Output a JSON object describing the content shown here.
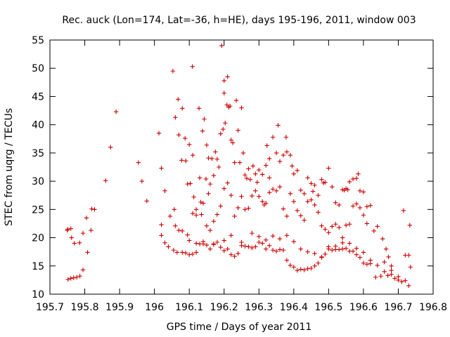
{
  "chart_data": {
    "type": "scatter",
    "title": "Rec. auck (Lon=174, Lat=-36, h=HE), days 195-196, 2011, window 003",
    "xlabel": "GPS time / Days of year 2011",
    "ylabel": "STEC from uqrg / TECUs",
    "xlim": [
      195.7,
      196.8
    ],
    "ylim": [
      10,
      55
    ],
    "xticks": [
      "195.7",
      "195.8",
      "195.9",
      "196",
      "196.1",
      "196.2",
      "196.3",
      "196.4",
      "196.5",
      "196.6",
      "196.7",
      "196.8"
    ],
    "yticks": [
      "10",
      "15",
      "20",
      "25",
      "30",
      "35",
      "40",
      "45",
      "50",
      "55"
    ],
    "grid": false,
    "marker": "+",
    "color": "#cc0000",
    "series": [
      {
        "points": [
          [
            195.75,
            21.3
          ],
          [
            195.751,
            21.5
          ],
          [
            195.76,
            21.6
          ],
          [
            195.762,
            20.0
          ],
          [
            195.77,
            19.0
          ],
          [
            195.785,
            19.1
          ],
          [
            195.795,
            20.8
          ],
          [
            195.805,
            23.5
          ],
          [
            195.808,
            17.4
          ],
          [
            195.818,
            21.3
          ],
          [
            195.82,
            25.1
          ],
          [
            195.828,
            25.0
          ],
          [
            195.86,
            30.1
          ],
          [
            195.874,
            36.0
          ],
          [
            195.89,
            42.3
          ],
          [
            195.752,
            12.6
          ],
          [
            195.76,
            12.8
          ],
          [
            195.768,
            12.9
          ],
          [
            195.777,
            13.0
          ],
          [
            195.786,
            13.2
          ],
          [
            195.795,
            14.3
          ],
          [
            195.954,
            33.3
          ],
          [
            195.964,
            30.0
          ],
          [
            195.978,
            26.5
          ],
          [
            196.013,
            38.5
          ],
          [
            196.02,
            22.3
          ],
          [
            196.02,
            32.3
          ],
          [
            196.03,
            28.3
          ],
          [
            196.045,
            23.8
          ],
          [
            196.053,
            49.5
          ],
          [
            196.057,
            25.0
          ],
          [
            196.06,
            41.3
          ],
          [
            196.068,
            44.5
          ],
          [
            196.07,
            38.2
          ],
          [
            196.078,
            33.7
          ],
          [
            196.08,
            42.9
          ],
          [
            196.088,
            37.6
          ],
          [
            196.09,
            33.6
          ],
          [
            196.095,
            29.5
          ],
          [
            196.1,
            36.5
          ],
          [
            196.103,
            29.6
          ],
          [
            196.109,
            50.3
          ],
          [
            196.11,
            34.6
          ],
          [
            196.113,
            27.2
          ],
          [
            196.12,
            25.0
          ],
          [
            196.128,
            42.9
          ],
          [
            196.13,
            30.6
          ],
          [
            196.133,
            26.3
          ],
          [
            196.138,
            38.9
          ],
          [
            196.14,
            26.1
          ],
          [
            196.143,
            41.0
          ],
          [
            196.148,
            30.4
          ],
          [
            196.15,
            36.4
          ],
          [
            196.155,
            34.1
          ],
          [
            196.155,
            27.8
          ],
          [
            196.16,
            29.5
          ],
          [
            196.165,
            34.0
          ],
          [
            196.17,
            31.0
          ],
          [
            196.175,
            35.2
          ],
          [
            196.18,
            33.9
          ],
          [
            196.185,
            32.5
          ],
          [
            196.19,
            38.4
          ],
          [
            196.193,
            54.0
          ],
          [
            196.197,
            39.2
          ],
          [
            196.2,
            45.6
          ],
          [
            196.2,
            47.8
          ],
          [
            196.203,
            40.3
          ],
          [
            196.208,
            43.5
          ],
          [
            196.21,
            48.5
          ],
          [
            196.213,
            43.1
          ],
          [
            196.217,
            43.3
          ],
          [
            196.22,
            37.3
          ],
          [
            196.225,
            36.8
          ],
          [
            196.23,
            33.3
          ],
          [
            196.235,
            44.3
          ],
          [
            196.24,
            39.0
          ],
          [
            196.245,
            33.3
          ],
          [
            196.25,
            43.0
          ],
          [
            196.255,
            35.0
          ],
          [
            196.26,
            31.1
          ],
          [
            196.265,
            30.5
          ],
          [
            196.27,
            32.2
          ],
          [
            196.275,
            30.3
          ],
          [
            196.283,
            32.7
          ],
          [
            196.29,
            31.3
          ],
          [
            196.295,
            29.8
          ],
          [
            196.3,
            32.0
          ],
          [
            196.31,
            31.2
          ],
          [
            196.32,
            32.8
          ],
          [
            196.323,
            36.3
          ],
          [
            196.33,
            34.0
          ],
          [
            196.33,
            30.6
          ],
          [
            196.34,
            37.8
          ],
          [
            196.35,
            35.0
          ],
          [
            196.355,
            39.9
          ],
          [
            196.36,
            33.5
          ],
          [
            196.37,
            34.6
          ],
          [
            196.378,
            37.8
          ],
          [
            196.38,
            35.2
          ],
          [
            196.39,
            34.6
          ],
          [
            196.395,
            32.7
          ],
          [
            196.4,
            31.3
          ],
          [
            196.41,
            31.9
          ],
          [
            196.42,
            28.4
          ],
          [
            196.43,
            27.8
          ],
          [
            196.44,
            30.6
          ],
          [
            196.45,
            29.6
          ],
          [
            196.455,
            28.2
          ],
          [
            196.46,
            29.3
          ],
          [
            196.47,
            27.5
          ],
          [
            196.48,
            30.3
          ],
          [
            196.485,
            29.7
          ],
          [
            196.49,
            29.8
          ],
          [
            196.5,
            32.3
          ],
          [
            196.51,
            29.0
          ],
          [
            196.52,
            26.2
          ],
          [
            196.53,
            25.8
          ],
          [
            196.54,
            28.5
          ],
          [
            196.545,
            28.4
          ],
          [
            196.55,
            28.7
          ],
          [
            196.555,
            28.5
          ],
          [
            196.56,
            29.9
          ],
          [
            196.57,
            30.4
          ],
          [
            196.58,
            30.5
          ],
          [
            196.585,
            31.3
          ],
          [
            196.59,
            28.3
          ],
          [
            196.6,
            28.1
          ],
          [
            196.61,
            25.5
          ],
          [
            196.62,
            25.7
          ],
          [
            196.06,
            22.1
          ],
          [
            196.07,
            21.3
          ],
          [
            196.08,
            21.2
          ],
          [
            196.095,
            20.5
          ],
          [
            196.11,
            24.3
          ],
          [
            196.12,
            24.0
          ],
          [
            196.135,
            24.1
          ],
          [
            196.15,
            22.1
          ],
          [
            196.16,
            21.3
          ],
          [
            196.17,
            22.9
          ],
          [
            196.18,
            24.1
          ],
          [
            196.19,
            25.6
          ],
          [
            196.2,
            28.7
          ],
          [
            196.21,
            29.7
          ],
          [
            196.22,
            27.5
          ],
          [
            196.23,
            23.8
          ],
          [
            196.24,
            25.3
          ],
          [
            196.25,
            27.3
          ],
          [
            196.26,
            25.0
          ],
          [
            196.27,
            25.2
          ],
          [
            196.28,
            27.4
          ],
          [
            196.29,
            28.3
          ],
          [
            196.3,
            27.3
          ],
          [
            196.31,
            26.4
          ],
          [
            196.315,
            25.8
          ],
          [
            196.32,
            26.1
          ],
          [
            196.33,
            28.0
          ],
          [
            196.34,
            28.6
          ],
          [
            196.35,
            28.3
          ],
          [
            196.36,
            29.0
          ],
          [
            196.37,
            25.1
          ],
          [
            196.38,
            23.8
          ],
          [
            196.39,
            27.8
          ],
          [
            196.4,
            26.4
          ],
          [
            196.41,
            24.8
          ],
          [
            196.42,
            23.9
          ],
          [
            196.43,
            23.1
          ],
          [
            196.44,
            26.4
          ],
          [
            196.45,
            26.7
          ],
          [
            196.46,
            25.8
          ],
          [
            196.47,
            24.5
          ],
          [
            196.48,
            22.1
          ],
          [
            196.49,
            21.5
          ],
          [
            196.5,
            20.9
          ],
          [
            196.51,
            22.0
          ],
          [
            196.52,
            22.4
          ],
          [
            196.53,
            21.8
          ],
          [
            196.54,
            20.0
          ],
          [
            196.55,
            22.2
          ],
          [
            196.56,
            22.4
          ],
          [
            196.57,
            25.6
          ],
          [
            196.58,
            26.0
          ],
          [
            196.59,
            25.3
          ],
          [
            196.6,
            24.0
          ],
          [
            196.61,
            22.5
          ],
          [
            196.63,
            21.2
          ],
          [
            196.64,
            22.0
          ],
          [
            196.655,
            19.8
          ],
          [
            196.665,
            18.0
          ],
          [
            196.672,
            16.6
          ],
          [
            196.68,
            15.0
          ],
          [
            196.02,
            20.4
          ],
          [
            196.03,
            19.1
          ],
          [
            196.04,
            18.4
          ],
          [
            196.055,
            17.8
          ],
          [
            196.065,
            17.4
          ],
          [
            196.08,
            17.4
          ],
          [
            196.09,
            17.3
          ],
          [
            196.1,
            17.0
          ],
          [
            196.11,
            17.1
          ],
          [
            196.12,
            17.4
          ],
          [
            196.13,
            18.9
          ],
          [
            196.14,
            18.9
          ],
          [
            196.15,
            18.7
          ],
          [
            196.16,
            18.0
          ],
          [
            196.17,
            18.8
          ],
          [
            196.18,
            19.2
          ],
          [
            196.19,
            18.3
          ],
          [
            196.2,
            17.7
          ],
          [
            196.21,
            18.0
          ],
          [
            196.22,
            17.0
          ],
          [
            196.23,
            16.7
          ],
          [
            196.24,
            17.2
          ],
          [
            196.25,
            18.6
          ],
          [
            196.26,
            18.5
          ],
          [
            196.27,
            18.4
          ],
          [
            196.28,
            18.2
          ],
          [
            196.29,
            18.4
          ],
          [
            196.3,
            19.2
          ],
          [
            196.31,
            19.0
          ],
          [
            196.32,
            18.0
          ],
          [
            196.33,
            18.6
          ],
          [
            196.34,
            17.8
          ],
          [
            196.35,
            17.6
          ],
          [
            196.36,
            17.9
          ],
          [
            196.37,
            17.8
          ],
          [
            196.38,
            16.0
          ],
          [
            196.39,
            15.1
          ],
          [
            196.4,
            14.8
          ],
          [
            196.41,
            14.2
          ],
          [
            196.42,
            14.4
          ],
          [
            196.43,
            14.3
          ],
          [
            196.44,
            14.5
          ],
          [
            196.45,
            14.6
          ],
          [
            196.46,
            15.0
          ],
          [
            196.47,
            15.5
          ],
          [
            196.48,
            16.6
          ],
          [
            196.49,
            17.1
          ],
          [
            196.5,
            18.0
          ],
          [
            196.51,
            17.8
          ],
          [
            196.52,
            17.9
          ],
          [
            196.53,
            17.9
          ],
          [
            196.54,
            18.0
          ],
          [
            196.55,
            18.1
          ],
          [
            196.56,
            17.6
          ],
          [
            196.57,
            17.6
          ],
          [
            196.58,
            17.0
          ],
          [
            196.59,
            16.5
          ],
          [
            196.6,
            15.5
          ],
          [
            196.61,
            15.3
          ],
          [
            196.62,
            15.4
          ],
          [
            196.635,
            13.0
          ],
          [
            196.65,
            13.2
          ],
          [
            196.66,
            14.0
          ],
          [
            196.67,
            13.3
          ],
          [
            196.68,
            13.5
          ],
          [
            196.69,
            12.8
          ],
          [
            196.7,
            12.5
          ],
          [
            196.71,
            12.2
          ],
          [
            196.72,
            12.4
          ],
          [
            196.73,
            11.5
          ],
          [
            196.1,
            19.5
          ],
          [
            196.12,
            19.0
          ],
          [
            196.14,
            19.3
          ],
          [
            196.17,
            18.9
          ],
          [
            196.2,
            19.5
          ],
          [
            196.22,
            20.4
          ],
          [
            196.25,
            19.2
          ],
          [
            196.28,
            20.8
          ],
          [
            196.3,
            20.2
          ],
          [
            196.32,
            19.6
          ],
          [
            196.34,
            20.3
          ],
          [
            196.36,
            19.8
          ],
          [
            196.38,
            20.4
          ],
          [
            196.4,
            19.3
          ],
          [
            196.42,
            18.0
          ],
          [
            196.44,
            17.5
          ],
          [
            196.46,
            17.2
          ],
          [
            196.48,
            16.5
          ],
          [
            196.5,
            18.4
          ],
          [
            196.52,
            18.5
          ],
          [
            196.54,
            19.1
          ],
          [
            196.56,
            19.0
          ],
          [
            196.58,
            18.1
          ],
          [
            196.6,
            17.4
          ],
          [
            196.62,
            16.0
          ],
          [
            196.64,
            15.1
          ],
          [
            196.66,
            15.7
          ],
          [
            196.68,
            14.2
          ],
          [
            196.7,
            13.1
          ],
          [
            196.715,
            24.8
          ],
          [
            196.72,
            16.9
          ],
          [
            196.73,
            16.9
          ],
          [
            196.733,
            22.2
          ],
          [
            196.735,
            14.8
          ]
        ]
      }
    ]
  }
}
